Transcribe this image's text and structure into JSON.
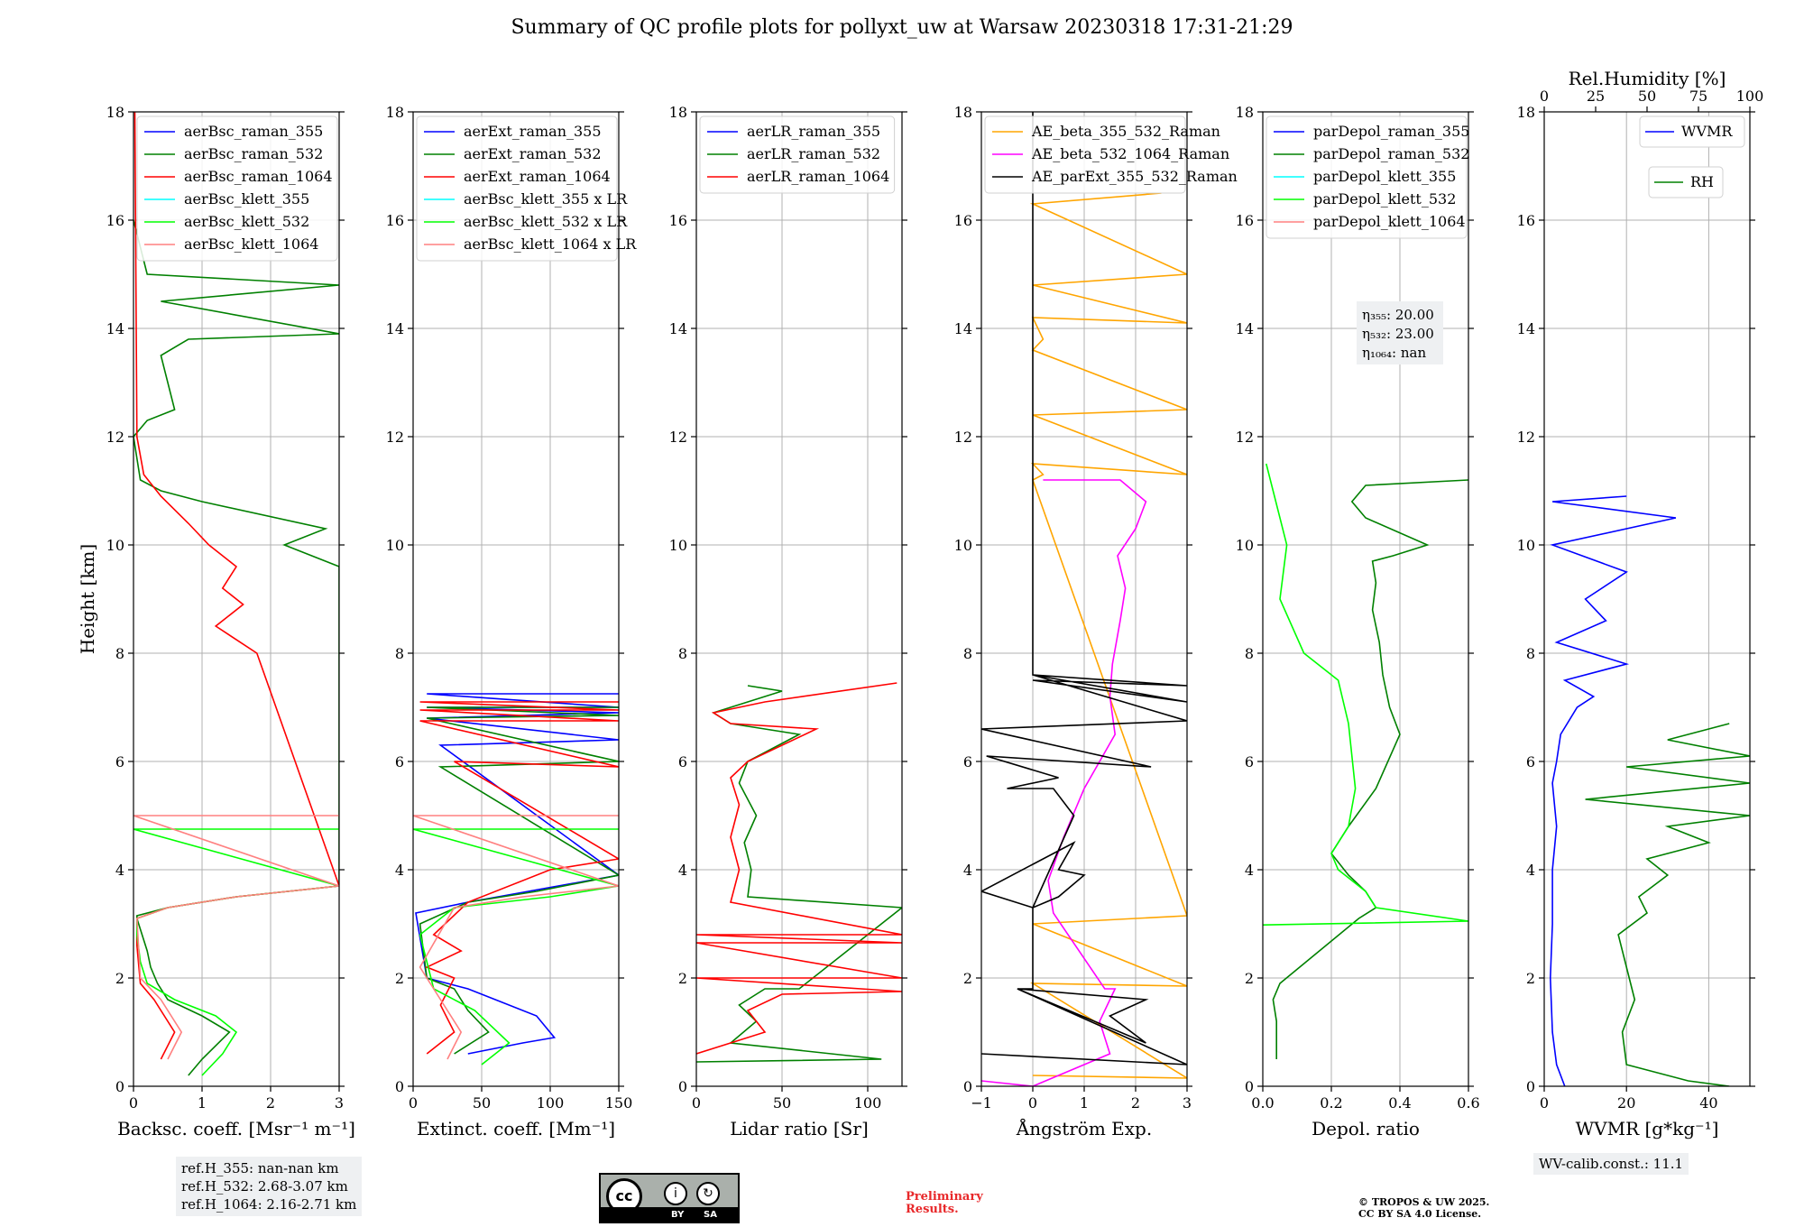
{
  "title": "Summary of QC profile plots for pollyxt_uw at Warsaw 20230318 17:31-21:29",
  "ylabel": "Height [km]",
  "ref_heights": [
    "ref.H_355: nan-nan km",
    "ref.H_532: 2.68-3.07 km",
    "ref.H_1064: 2.16-2.71 km"
  ],
  "wv_calib": "WV-calib.const.: 11.1",
  "preliminary": [
    "Preliminary",
    "Results."
  ],
  "copyright": [
    "© TROPOS & UW 2025.",
    "CC BY SA 4.0 License."
  ],
  "cc_badge": {
    "by": "BY",
    "sa": "SA"
  },
  "colors": {
    "blue": "#0000ff",
    "green": "#008000",
    "red": "#ff0000",
    "cyan": "#00ffff",
    "lime": "#00ff00",
    "salmon": "#ff8080",
    "orange": "#ffa500",
    "magenta": "#ff00ff",
    "black": "#000000"
  },
  "chart_data": [
    {
      "type": "line",
      "xlabel": "Backsc. coeff. [Msr⁻¹ m⁻¹]",
      "xlim": [
        0,
        3
      ],
      "ylim": [
        0,
        18
      ],
      "xticks": [
        0,
        1,
        2,
        3
      ],
      "yticks": [
        0,
        2,
        4,
        6,
        8,
        10,
        12,
        14,
        16,
        18
      ],
      "legend": "top-left",
      "series": [
        {
          "name": "aerBsc_raman_355",
          "color": "blue",
          "x": [],
          "y": []
        },
        {
          "name": "aerBsc_raman_532",
          "color": "green",
          "x": [
            0.8,
            1.0,
            1.4,
            1.0,
            0.5,
            0.35,
            0.25,
            0.2,
            0.1,
            0.05,
            0.05,
            0.5,
            1.5,
            3.0,
            3.0,
            2.2,
            2.8,
            1.0,
            0.4,
            0.1,
            0.0,
            0.2,
            0.6,
            0.4,
            0.8,
            3.0,
            0.4,
            3.0,
            0.2,
            0.0
          ],
          "y": [
            0.2,
            0.5,
            1.0,
            1.3,
            1.6,
            1.9,
            2.2,
            2.5,
            2.9,
            3.1,
            3.15,
            3.3,
            3.5,
            3.7,
            9.6,
            10.0,
            10.3,
            10.8,
            11.0,
            11.2,
            12.0,
            12.3,
            12.5,
            13.5,
            13.8,
            13.9,
            14.5,
            14.8,
            15.0,
            16.0
          ]
        },
        {
          "name": "aerBsc_raman_1064",
          "color": "red",
          "x": [
            0.4,
            0.6,
            0.3,
            0.1,
            0.05,
            0.05,
            0.5,
            1.5,
            3.0,
            1.8,
            1.2,
            1.6,
            1.3,
            1.5,
            1.1,
            0.8,
            0.4,
            0.15,
            0.05,
            0.02
          ],
          "y": [
            0.5,
            1.0,
            1.6,
            1.9,
            2.6,
            3.1,
            3.3,
            3.5,
            3.7,
            8.0,
            8.5,
            8.9,
            9.2,
            9.6,
            10.0,
            10.4,
            10.9,
            11.3,
            12.0,
            18.0
          ]
        },
        {
          "name": "aerBsc_klett_355",
          "color": "cyan",
          "x": [],
          "y": []
        },
        {
          "name": "aerBsc_klett_532",
          "color": "lime",
          "x": [
            1.0,
            1.3,
            1.5,
            1.2,
            0.6,
            0.2,
            0.1,
            0.05,
            0.05,
            0.5,
            1.5,
            3.0,
            0,
            3
          ],
          "y": [
            0.2,
            0.6,
            1.0,
            1.3,
            1.6,
            1.9,
            2.3,
            2.8,
            3.1,
            3.3,
            3.5,
            3.7,
            4.75,
            4.75
          ]
        },
        {
          "name": "aerBsc_klett_1064",
          "color": "salmon",
          "x": [
            0.5,
            0.7,
            0.4,
            0.1,
            0.05,
            0.5,
            1.5,
            3.0,
            0,
            3
          ],
          "y": [
            0.5,
            1.0,
            1.6,
            2.0,
            3.1,
            3.3,
            3.5,
            3.7,
            5.0,
            5.0
          ]
        }
      ]
    },
    {
      "type": "line",
      "xlabel": "Extinct. coeff. [Mm⁻¹]",
      "xlim": [
        0,
        150
      ],
      "ylim": [
        0,
        18
      ],
      "xticks": [
        0,
        50,
        100,
        150
      ],
      "yticks": [
        0,
        2,
        4,
        6,
        8,
        10,
        12,
        14,
        16,
        18
      ],
      "legend": "top-left",
      "series": [
        {
          "name": "aerExt_raman_355",
          "color": "blue",
          "x": [
            40,
            80,
            103,
            90,
            60,
            40,
            10,
            2,
            40,
            150,
            20,
            150,
            10,
            150,
            10,
            150,
            10,
            150
          ],
          "y": [
            0.6,
            0.8,
            0.9,
            1.3,
            1.6,
            1.8,
            2.0,
            3.2,
            3.4,
            3.9,
            6.3,
            6.4,
            6.8,
            6.9,
            7.0,
            7.0,
            7.25,
            7.25
          ]
        },
        {
          "name": "aerExt_raman_532",
          "color": "green",
          "x": [
            30,
            55,
            40,
            30,
            10,
            5,
            40,
            90,
            150,
            20,
            150,
            10,
            150,
            10,
            150
          ],
          "y": [
            0.6,
            1.0,
            1.4,
            1.8,
            2.0,
            3.0,
            3.4,
            3.6,
            3.9,
            5.9,
            6.0,
            6.8,
            6.85,
            7.0,
            7.0
          ]
        },
        {
          "name": "aerExt_raman_1064",
          "color": "red",
          "x": [
            10,
            30,
            20,
            30,
            10,
            35,
            15,
            40,
            100,
            150,
            30,
            150,
            5,
            150,
            5,
            150,
            5,
            150
          ],
          "y": [
            0.6,
            1.0,
            1.5,
            2.0,
            2.2,
            2.5,
            2.8,
            3.4,
            4.0,
            4.2,
            6.0,
            5.9,
            6.75,
            6.75,
            6.95,
            6.95,
            7.1,
            7.1
          ]
        },
        {
          "name": "aerBsc_klett_355 x LR",
          "color": "cyan",
          "x": [],
          "y": []
        },
        {
          "name": "aerBsc_klett_532 x LR",
          "color": "lime",
          "x": [
            50,
            70,
            45,
            15,
            5,
            30,
            100,
            150,
            0,
            150
          ],
          "y": [
            0.4,
            0.8,
            1.4,
            1.8,
            2.8,
            3.3,
            3.5,
            3.7,
            4.75,
            4.75
          ]
        },
        {
          "name": "aerBsc_klett_1064 x LR",
          "color": "salmon",
          "x": [
            25,
            35,
            20,
            5,
            30,
            80,
            150,
            0,
            150
          ],
          "y": [
            0.5,
            1.0,
            1.6,
            2.2,
            3.3,
            3.5,
            3.7,
            5.0,
            5.0
          ]
        }
      ]
    },
    {
      "type": "line",
      "xlabel": "Lidar ratio [Sr]",
      "xlim": [
        0,
        120
      ],
      "ylim": [
        0,
        18
      ],
      "xticks": [
        0,
        50,
        100
      ],
      "yticks": [
        0,
        2,
        4,
        6,
        8,
        10,
        12,
        14,
        16,
        18
      ],
      "legend": "top-left",
      "series": [
        {
          "name": "aerLR_raman_355",
          "color": "blue",
          "x": [],
          "y": []
        },
        {
          "name": "aerLR_raman_532",
          "color": "green",
          "x": [
            0,
            108,
            20,
            35,
            25,
            40,
            60,
            120,
            30,
            32,
            28,
            35,
            25,
            30,
            60,
            20,
            10,
            30,
            50,
            30
          ],
          "y": [
            0.45,
            0.5,
            0.8,
            1.2,
            1.5,
            1.8,
            1.8,
            3.3,
            3.5,
            4.0,
            4.5,
            5.0,
            5.6,
            6.0,
            6.5,
            6.7,
            6.9,
            7.1,
            7.3,
            7.4
          ]
        },
        {
          "name": "aerLR_raman_1064",
          "color": "red",
          "x": [
            0,
            20,
            40,
            30,
            50,
            120,
            0,
            120,
            0,
            120,
            0,
            120,
            20,
            25,
            20,
            25,
            20,
            30,
            70,
            20,
            10,
            40,
            117
          ],
          "y": [
            0.6,
            0.8,
            1.0,
            1.4,
            1.7,
            1.75,
            2.0,
            2.0,
            2.65,
            2.65,
            2.8,
            2.8,
            3.4,
            4.0,
            4.6,
            5.2,
            5.7,
            6.0,
            6.6,
            6.7,
            6.9,
            7.1,
            7.45
          ]
        }
      ]
    },
    {
      "type": "line",
      "xlabel": "Ångström Exp.",
      "xlim": [
        -1,
        3
      ],
      "ylim": [
        0,
        18
      ],
      "xticks": [
        -1,
        0,
        1,
        2,
        3
      ],
      "yticks": [
        0,
        2,
        4,
        6,
        8,
        10,
        12,
        14,
        16,
        18
      ],
      "legend": "top-left",
      "series": [
        {
          "name": "AE_beta_355_532_Raman",
          "color": "orange",
          "x": [
            0,
            3,
            0,
            3,
            0,
            3,
            0,
            0.2,
            0,
            3,
            0,
            3,
            0,
            0.2,
            0,
            3,
            0,
            3,
            0,
            2.5
          ],
          "y": [
            0.2,
            0.15,
            1.9,
            1.85,
            3.0,
            3.15,
            11.2,
            11.3,
            11.5,
            11.3,
            12.4,
            12.5,
            13.6,
            13.8,
            14.2,
            14.1,
            14.8,
            15.0,
            16.3,
            16.5
          ]
        },
        {
          "name": "AE_beta_532_1064_Raman",
          "color": "magenta",
          "x": [
            -1,
            0,
            1.5,
            1.3,
            1.6,
            1.4,
            0.4,
            0.3,
            0.6,
            1.0,
            1.6,
            1.5,
            1.55,
            1.7,
            1.8,
            1.65,
            2.0,
            2.2,
            1.7,
            0.2
          ],
          "y": [
            0.1,
            0.0,
            0.6,
            1.2,
            1.8,
            1.8,
            3.2,
            3.8,
            4.6,
            5.5,
            6.5,
            7.2,
            7.8,
            8.6,
            9.2,
            9.8,
            10.3,
            10.8,
            11.2,
            11.2
          ]
        },
        {
          "name": "AE_parExt_355_532_Raman",
          "color": "black",
          "x": [
            -1,
            3,
            -0.3,
            2.2,
            1.5,
            2.2,
            -0.3,
            0,
            0,
            0.5,
            1.0,
            0.5,
            0.8,
            -1,
            0,
            0.8,
            0.4,
            -0.5,
            0.5,
            -0.9,
            2.3,
            -1,
            3,
            0,
            3,
            0,
            3,
            0,
            0
          ],
          "y": [
            0.6,
            0.4,
            1.8,
            1.6,
            1.3,
            0.8,
            1.8,
            1.8,
            3.3,
            3.5,
            3.9,
            4.0,
            4.5,
            3.6,
            3.3,
            5.0,
            5.5,
            5.5,
            5.7,
            6.1,
            5.9,
            6.6,
            6.75,
            7.6,
            7.1,
            7.5,
            7.4,
            7.6,
            18
          ]
        }
      ]
    },
    {
      "type": "line",
      "xlabel": "Depol. ratio",
      "xlim": [
        0,
        0.6
      ],
      "ylim": [
        0,
        18
      ],
      "xticks": [
        0.0,
        0.2,
        0.4,
        0.6
      ],
      "yticks": [
        0,
        2,
        4,
        6,
        8,
        10,
        12,
        14,
        16,
        18
      ],
      "legend": "top-left",
      "annotation": [
        "η₃₅₅: 20.00",
        "η₅₃₂: 23.00",
        "η₁₀₆₄: nan"
      ],
      "series": [
        {
          "name": "parDepol_raman_355",
          "color": "blue",
          "x": [],
          "y": []
        },
        {
          "name": "parDepol_raman_532",
          "color": "green",
          "x": [
            0.04,
            0.04,
            0.03,
            0.05,
            0.28,
            0.33,
            0.3,
            0.25,
            0.2,
            0.25,
            0.33,
            0.4,
            0.37,
            0.35,
            0.34,
            0.32,
            0.33,
            0.32,
            0.38,
            0.48,
            0.3,
            0.26,
            0.3,
            0.6
          ],
          "y": [
            0.5,
            1.2,
            1.6,
            1.9,
            3.1,
            3.3,
            3.6,
            3.9,
            4.3,
            4.8,
            5.5,
            6.5,
            7.0,
            7.6,
            8.2,
            8.8,
            9.3,
            9.7,
            9.8,
            10.0,
            10.5,
            10.8,
            11.1,
            11.2
          ]
        },
        {
          "name": "parDepol_klett_355",
          "color": "cyan",
          "x": [],
          "y": []
        },
        {
          "name": "parDepol_klett_532",
          "color": "lime",
          "x": [
            0.0,
            0.6,
            0.33,
            0.3,
            0.22,
            0.2,
            0.25,
            0.27,
            0.25,
            0.22,
            0.12,
            0.05,
            0.07,
            0.03,
            0.01
          ],
          "y": [
            2.98,
            3.05,
            3.3,
            3.6,
            4.0,
            4.3,
            4.8,
            5.5,
            6.7,
            7.5,
            8.0,
            9.0,
            10.0,
            11.0,
            11.5
          ]
        },
        {
          "name": "parDepol_klett_1064",
          "color": "salmon",
          "x": [],
          "y": []
        }
      ]
    },
    {
      "type": "line",
      "xlabel": "WVMR [g*kg⁻¹]",
      "xlim": [
        0,
        50
      ],
      "ylim": [
        0,
        18
      ],
      "xticks": [
        0,
        20,
        40
      ],
      "yticks": [
        0,
        2,
        4,
        6,
        8,
        10,
        12,
        14,
        16,
        18
      ],
      "top_axis": {
        "label": "Rel.Humidity [%]",
        "xlim": [
          0,
          100
        ],
        "xticks": [
          0,
          25,
          50,
          75,
          100
        ]
      },
      "legend": "top-right",
      "series": [
        {
          "name": "WVMR",
          "color": "blue",
          "x": [
            5,
            3,
            2,
            1.5,
            2,
            2,
            3,
            2,
            3,
            4,
            8,
            12,
            5,
            20,
            3,
            15,
            10,
            20,
            2,
            32,
            2,
            20
          ],
          "y": [
            0.0,
            0.4,
            1.0,
            2.0,
            3.0,
            4.0,
            4.8,
            5.6,
            6.0,
            6.5,
            7.0,
            7.2,
            7.5,
            7.8,
            8.2,
            8.6,
            9.0,
            9.5,
            10.0,
            10.5,
            10.8,
            10.9
          ]
        },
        {
          "name": "RH",
          "color": "green",
          "x": [
            45,
            35,
            20,
            19,
            22,
            20,
            18,
            25,
            23,
            30,
            25,
            40,
            30,
            50,
            10,
            50,
            20,
            50,
            30,
            45
          ],
          "y": [
            0.0,
            0.1,
            0.4,
            1.0,
            1.6,
            2.2,
            2.8,
            3.2,
            3.5,
            3.9,
            4.2,
            4.5,
            4.8,
            5.0,
            5.3,
            5.6,
            5.9,
            6.1,
            6.4,
            6.7
          ]
        }
      ]
    }
  ]
}
